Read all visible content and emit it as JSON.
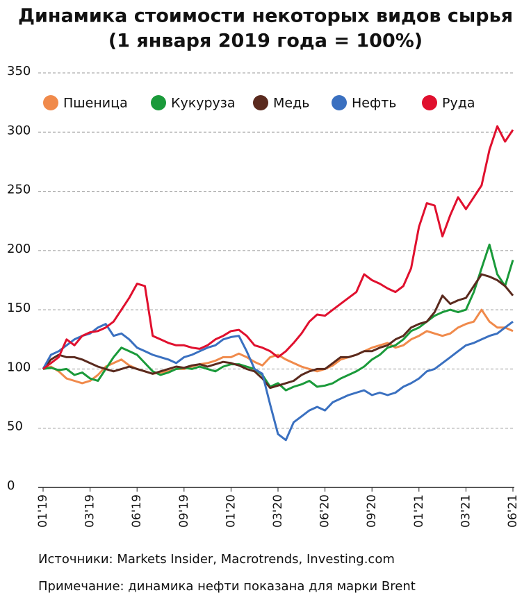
{
  "chart_data": {
    "type": "line",
    "title": "Динамика стоимости некоторых видов сырья",
    "subtitle": "(1 января 2019 года = 100%)",
    "source": "Источники: Markets Insider, Macrotrends, Investing.com",
    "note": "Примечание: динамика нефти показана для марки Brent",
    "categories": [
      "01'19",
      null,
      null,
      null,
      null,
      null,
      "03'19",
      null,
      null,
      null,
      null,
      null,
      "06'19",
      null,
      null,
      null,
      null,
      null,
      "09'19",
      null,
      null,
      null,
      null,
      null,
      "01'20",
      null,
      null,
      null,
      null,
      null,
      "03'20",
      null,
      null,
      null,
      null,
      null,
      "06'20",
      null,
      null,
      null,
      null,
      null,
      "09'20",
      null,
      null,
      null,
      null,
      null,
      "01'21",
      null,
      null,
      null,
      null,
      null,
      "03'21",
      null,
      null,
      null,
      null,
      null,
      "06'21"
    ],
    "ylim": [
      0,
      350
    ],
    "yticks": [
      0,
      50,
      100,
      150,
      200,
      250,
      300,
      350
    ],
    "grid": true,
    "legend": "top",
    "series": [
      {
        "name": "Пшеница",
        "color": "#f08a4b",
        "values": [
          100,
          102,
          98,
          92,
          90,
          88,
          90,
          95,
          102,
          105,
          108,
          103,
          100,
          98,
          96,
          97,
          98,
          100,
          100,
          102,
          104,
          105,
          107,
          110,
          110,
          113,
          110,
          106,
          103,
          110,
          112,
          108,
          105,
          102,
          100,
          98,
          100,
          103,
          108,
          110,
          112,
          115,
          118,
          120,
          122,
          118,
          120,
          125,
          128,
          132,
          130,
          128,
          130,
          135,
          138,
          140,
          150,
          140,
          135,
          135,
          132
        ]
      },
      {
        "name": "Кукуруза",
        "color": "#1a9a3a",
        "values": [
          100,
          101,
          99,
          100,
          95,
          97,
          92,
          90,
          100,
          110,
          118,
          115,
          112,
          105,
          98,
          95,
          97,
          100,
          101,
          100,
          102,
          100,
          98,
          102,
          104,
          104,
          102,
          100,
          95,
          85,
          88,
          82,
          85,
          87,
          90,
          85,
          86,
          88,
          92,
          95,
          98,
          102,
          108,
          112,
          118,
          120,
          125,
          132,
          135,
          140,
          145,
          148,
          150,
          148,
          150,
          165,
          185,
          205,
          180,
          170,
          192
        ]
      },
      {
        "name": "Медь",
        "color": "#5a2a1e",
        "values": [
          100,
          108,
          112,
          110,
          110,
          108,
          105,
          102,
          100,
          98,
          100,
          102,
          100,
          98,
          96,
          98,
          100,
          102,
          101,
          103,
          104,
          102,
          104,
          106,
          105,
          103,
          100,
          98,
          92,
          84,
          86,
          88,
          90,
          95,
          98,
          100,
          100,
          105,
          110,
          110,
          112,
          115,
          115,
          118,
          120,
          125,
          128,
          135,
          138,
          140,
          148,
          162,
          155,
          158,
          160,
          170,
          180,
          178,
          175,
          170,
          162
        ]
      },
      {
        "name": "Нефть",
        "color": "#3a70c0",
        "values": [
          100,
          112,
          115,
          120,
          125,
          128,
          130,
          135,
          138,
          128,
          130,
          125,
          118,
          115,
          112,
          110,
          108,
          105,
          110,
          112,
          115,
          118,
          120,
          125,
          127,
          128,
          115,
          100,
          96,
          70,
          45,
          40,
          55,
          60,
          65,
          68,
          65,
          72,
          75,
          78,
          80,
          82,
          78,
          80,
          78,
          80,
          85,
          88,
          92,
          98,
          100,
          105,
          110,
          115,
          120,
          122,
          125,
          128,
          130,
          135,
          140
        ]
      },
      {
        "name": "Руда",
        "color": "#e0102e",
        "values": [
          100,
          105,
          110,
          125,
          120,
          128,
          131,
          132,
          135,
          140,
          150,
          160,
          172,
          170,
          128,
          125,
          122,
          120,
          120,
          118,
          117,
          120,
          125,
          128,
          132,
          133,
          128,
          120,
          118,
          115,
          110,
          115,
          122,
          130,
          140,
          146,
          145,
          150,
          155,
          160,
          165,
          180,
          175,
          172,
          168,
          165,
          170,
          185,
          220,
          240,
          238,
          212,
          230,
          245,
          235,
          245,
          255,
          285,
          305,
          292,
          302
        ]
      }
    ]
  }
}
